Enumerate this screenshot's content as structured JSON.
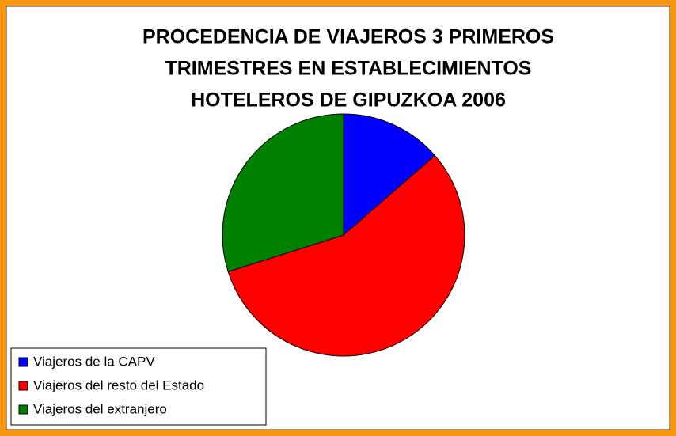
{
  "chart_data": {
    "type": "pie",
    "title": [
      "PROCEDENCIA DE VIAJEROS 3 PRIMEROS",
      "TRIMESTRES EN ESTABLECIMIENTOS",
      "HOTELEROS DE GIPUZKOA 2006"
    ],
    "categories": [
      "Viajeros de la CAPV",
      "Viajeros del resto del Estado",
      "Viajeros del extranjero"
    ],
    "values": [
      13.6,
      56.5,
      29.9
    ],
    "colors": [
      "#0000ff",
      "#ff0000",
      "#008000"
    ],
    "legend": "bottom-left"
  }
}
